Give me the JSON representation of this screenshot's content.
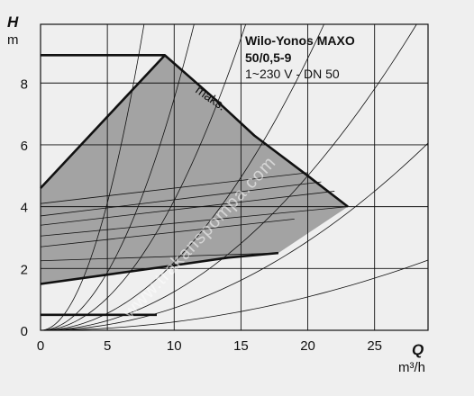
{
  "chart_data": {
    "type": "line",
    "title": "Wilo-Yonos MAXO",
    "subtitle_lines": [
      "50/0,5-9",
      "1~230 V - DN 50"
    ],
    "xlabel_symbol": "Q",
    "xlabel_unit": "m³/h",
    "ylabel_symbol": "H",
    "ylabel_unit": "m",
    "xlim": [
      0,
      29
    ],
    "ylim": [
      0,
      9.9
    ],
    "x_ticks": [
      0,
      5,
      10,
      15,
      20,
      25
    ],
    "y_ticks": [
      0,
      2,
      4,
      6,
      8
    ],
    "grid": true,
    "annotation": "maks.",
    "watermark": "www.trakanspompa.com",
    "colors": {
      "background": "#efefef",
      "fill": "#a3a3a3",
      "curve": "#111111",
      "grid": "#111111"
    },
    "series": [
      {
        "role": "max-curve",
        "x": [
          0,
          9.3,
          13,
          16,
          20,
          23
        ],
        "y": [
          4.6,
          8.9,
          7.5,
          6.3,
          5.0,
          4.0
        ]
      },
      {
        "role": "min-curve",
        "x": [
          0,
          5,
          10,
          14,
          17.8
        ],
        "y": [
          1.5,
          1.8,
          2.1,
          2.35,
          2.5
        ]
      },
      {
        "role": "max-flat",
        "x": [
          0,
          9.3
        ],
        "y": [
          8.9,
          8.9
        ]
      },
      {
        "role": "min-flat",
        "x": [
          0,
          8.7
        ],
        "y": [
          0.5,
          0.5
        ]
      }
    ],
    "system_curve_coefficients": [
      0.165,
      0.075,
      0.042,
      0.022,
      0.0125,
      0.0072,
      0.0027
    ],
    "control_line_points": [
      [
        [
          0,
          4.1
        ],
        [
          20,
          5.1
        ]
      ],
      [
        [
          0,
          3.7
        ],
        [
          21,
          4.8
        ]
      ],
      [
        [
          0,
          3.4
        ],
        [
          22,
          4.5
        ]
      ],
      [
        [
          0,
          3.05
        ],
        [
          23,
          4.0
        ]
      ],
      [
        [
          0,
          2.7
        ],
        [
          19,
          3.6
        ]
      ],
      [
        [
          0,
          2.25
        ],
        [
          17.8,
          2.5
        ]
      ]
    ]
  }
}
